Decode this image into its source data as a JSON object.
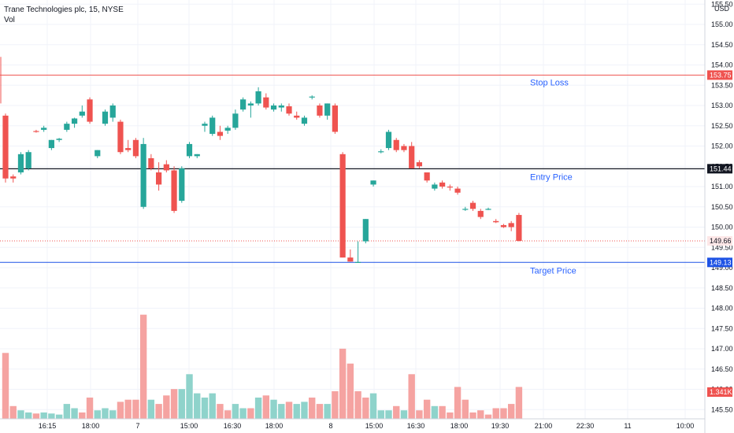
{
  "header": {
    "title": "Trane Technologies plc, 15, NYSE",
    "volume_label": "Vol",
    "currency": "USD"
  },
  "colors": {
    "up": "#26a69a",
    "down": "#ef5350",
    "up_volume": "#8fd3cb",
    "down_volume": "#f5a3a1",
    "stop_loss": "#ef5350",
    "entry": "#131722",
    "target": "#1e53e5",
    "annotation": "#2962ff"
  },
  "chart_data": {
    "type": "candlestick",
    "title": "Trane Technologies plc, 15, NYSE",
    "ylim": [
      145.55,
      155.75
    ],
    "y_ticks": [
      "155.50",
      "155.00",
      "154.50",
      "154.00",
      "153.50",
      "153.00",
      "152.50",
      "152.00",
      "151.50",
      "151.00",
      "150.50",
      "150.00",
      "149.50",
      "149.00",
      "148.50",
      "148.00",
      "147.50",
      "147.00",
      "146.50",
      "146.00",
      "145.50"
    ],
    "x_ticks": [
      "16:15",
      "18:00",
      "7",
      "15:00",
      "16:30",
      "18:00",
      "8",
      "15:00",
      "16:30",
      "18:00",
      "19:30",
      "21:00",
      "22:30",
      "11",
      "10:00"
    ],
    "grid": true,
    "candles": [
      {
        "o": 152.75,
        "h": 152.8,
        "l": 151.1,
        "c": 151.2
      },
      {
        "o": 151.25,
        "h": 151.3,
        "l": 151.1,
        "c": 151.2
      },
      {
        "o": 151.35,
        "h": 151.85,
        "l": 151.3,
        "c": 151.8
      },
      {
        "o": 151.45,
        "h": 151.9,
        "l": 151.4,
        "c": 151.85
      },
      {
        "o": 152.37,
        "h": 152.4,
        "l": 152.33,
        "c": 152.36
      },
      {
        "o": 152.4,
        "h": 152.5,
        "l": 152.35,
        "c": 152.45
      },
      {
        "o": 151.95,
        "h": 152.15,
        "l": 151.9,
        "c": 152.15
      },
      {
        "o": 152.15,
        "h": 152.2,
        "l": 152.1,
        "c": 152.18
      },
      {
        "o": 152.4,
        "h": 152.6,
        "l": 152.35,
        "c": 152.55
      },
      {
        "o": 152.55,
        "h": 152.7,
        "l": 152.45,
        "c": 152.68
      },
      {
        "o": 152.75,
        "h": 153.0,
        "l": 152.7,
        "c": 152.85
      },
      {
        "o": 153.15,
        "h": 153.2,
        "l": 152.55,
        "c": 152.6
      },
      {
        "o": 151.75,
        "h": 151.9,
        "l": 151.7,
        "c": 151.9
      },
      {
        "o": 152.55,
        "h": 152.9,
        "l": 152.5,
        "c": 152.85
      },
      {
        "o": 152.7,
        "h": 153.05,
        "l": 152.6,
        "c": 153.0
      },
      {
        "o": 152.6,
        "h": 152.65,
        "l": 151.8,
        "c": 151.85
      },
      {
        "o": 151.95,
        "h": 152.15,
        "l": 151.85,
        "c": 151.9
      },
      {
        "o": 152.15,
        "h": 152.2,
        "l": 151.7,
        "c": 151.75
      },
      {
        "o": 150.5,
        "h": 152.2,
        "l": 150.45,
        "c": 152.05
      },
      {
        "o": 151.7,
        "h": 151.8,
        "l": 151.4,
        "c": 151.45
      },
      {
        "o": 151.35,
        "h": 151.6,
        "l": 150.9,
        "c": 151.05
      },
      {
        "o": 151.55,
        "h": 151.65,
        "l": 151.35,
        "c": 151.4
      },
      {
        "o": 151.4,
        "h": 151.5,
        "l": 150.35,
        "c": 150.4
      },
      {
        "o": 150.65,
        "h": 151.5,
        "l": 150.6,
        "c": 151.45
      },
      {
        "o": 151.75,
        "h": 152.1,
        "l": 151.7,
        "c": 152.05
      },
      {
        "o": 151.75,
        "h": 151.8,
        "l": 151.7,
        "c": 151.8
      },
      {
        "o": 152.5,
        "h": 152.6,
        "l": 152.35,
        "c": 152.55
      },
      {
        "o": 152.3,
        "h": 152.75,
        "l": 152.25,
        "c": 152.7
      },
      {
        "o": 152.35,
        "h": 152.5,
        "l": 152.15,
        "c": 152.25
      },
      {
        "o": 152.38,
        "h": 152.5,
        "l": 152.3,
        "c": 152.45
      },
      {
        "o": 152.45,
        "h": 152.9,
        "l": 152.4,
        "c": 152.8
      },
      {
        "o": 152.9,
        "h": 153.2,
        "l": 152.85,
        "c": 153.15
      },
      {
        "o": 153.0,
        "h": 153.1,
        "l": 152.7,
        "c": 153.05
      },
      {
        "o": 153.05,
        "h": 153.45,
        "l": 153.0,
        "c": 153.35
      },
      {
        "o": 153.2,
        "h": 153.3,
        "l": 152.9,
        "c": 152.95
      },
      {
        "o": 152.9,
        "h": 153.05,
        "l": 152.85,
        "c": 153.0
      },
      {
        "o": 152.95,
        "h": 153.05,
        "l": 152.85,
        "c": 153.0
      },
      {
        "o": 152.98,
        "h": 153.05,
        "l": 152.75,
        "c": 152.8
      },
      {
        "o": 152.75,
        "h": 152.85,
        "l": 152.65,
        "c": 152.7
      },
      {
        "o": 152.55,
        "h": 152.75,
        "l": 152.5,
        "c": 152.7
      },
      {
        "o": 153.2,
        "h": 153.25,
        "l": 153.15,
        "c": 153.22
      },
      {
        "o": 153.0,
        "h": 153.05,
        "l": 152.7,
        "c": 152.75
      },
      {
        "o": 152.75,
        "h": 153.05,
        "l": 152.65,
        "c": 153.05
      },
      {
        "o": 153.0,
        "h": 153.05,
        "l": 152.3,
        "c": 152.35
      },
      {
        "o": 151.8,
        "h": 151.85,
        "l": 149.25,
        "c": 149.25
      },
      {
        "o": 149.25,
        "h": 149.45,
        "l": 149.15,
        "c": 149.15
      },
      {
        "o": 149.14,
        "h": 149.65,
        "l": 149.13,
        "c": 149.14
      },
      {
        "o": 149.65,
        "h": 150.2,
        "l": 149.6,
        "c": 150.2
      },
      {
        "o": 151.05,
        "h": 151.15,
        "l": 151.0,
        "c": 151.15
      },
      {
        "o": 151.87,
        "h": 151.92,
        "l": 151.82,
        "c": 151.87
      },
      {
        "o": 151.95,
        "h": 152.4,
        "l": 151.9,
        "c": 152.35
      },
      {
        "o": 152.15,
        "h": 152.2,
        "l": 151.85,
        "c": 151.9
      },
      {
        "o": 152.0,
        "h": 152.05,
        "l": 151.85,
        "c": 151.9
      },
      {
        "o": 152.0,
        "h": 152.1,
        "l": 151.45,
        "c": 151.45
      },
      {
        "o": 151.6,
        "h": 151.65,
        "l": 151.45,
        "c": 151.5
      },
      {
        "o": 151.35,
        "h": 151.35,
        "l": 151.1,
        "c": 151.15
      },
      {
        "o": 150.95,
        "h": 151.1,
        "l": 150.9,
        "c": 151.05
      },
      {
        "o": 151.1,
        "h": 151.15,
        "l": 150.95,
        "c": 151.0
      },
      {
        "o": 151.0,
        "h": 151.05,
        "l": 150.9,
        "c": 150.98
      },
      {
        "o": 150.95,
        "h": 151.0,
        "l": 150.8,
        "c": 150.85
      },
      {
        "o": 150.45,
        "h": 150.5,
        "l": 150.4,
        "c": 150.45
      },
      {
        "o": 150.6,
        "h": 150.65,
        "l": 150.4,
        "c": 150.45
      },
      {
        "o": 150.4,
        "h": 150.45,
        "l": 150.2,
        "c": 150.25
      },
      {
        "o": 150.45,
        "h": 150.48,
        "l": 150.42,
        "c": 150.45
      },
      {
        "o": 150.15,
        "h": 150.2,
        "l": 150.1,
        "c": 150.12
      },
      {
        "o": 150.05,
        "h": 150.08,
        "l": 149.98,
        "c": 150.0
      },
      {
        "o": 150.1,
        "h": 150.15,
        "l": 149.9,
        "c": 150.0
      },
      {
        "o": 150.3,
        "h": 150.35,
        "l": 149.65,
        "c": 149.66
      }
    ],
    "volume": [
      {
        "v": 62,
        "up": false
      },
      {
        "v": 12,
        "up": false
      },
      {
        "v": 8,
        "up": true
      },
      {
        "v": 6,
        "up": true
      },
      {
        "v": 5,
        "up": false
      },
      {
        "v": 6,
        "up": true
      },
      {
        "v": 5,
        "up": true
      },
      {
        "v": 4,
        "up": true
      },
      {
        "v": 14,
        "up": true
      },
      {
        "v": 10,
        "up": true
      },
      {
        "v": 6,
        "up": false
      },
      {
        "v": 20,
        "up": false
      },
      {
        "v": 8,
        "up": true
      },
      {
        "v": 10,
        "up": true
      },
      {
        "v": 8,
        "up": true
      },
      {
        "v": 16,
        "up": false
      },
      {
        "v": 18,
        "up": false
      },
      {
        "v": 18,
        "up": false
      },
      {
        "v": 98,
        "up": false
      },
      {
        "v": 18,
        "up": true
      },
      {
        "v": 14,
        "up": false
      },
      {
        "v": 22,
        "up": false
      },
      {
        "v": 28,
        "up": false
      },
      {
        "v": 28,
        "up": true
      },
      {
        "v": 42,
        "up": true
      },
      {
        "v": 24,
        "up": true
      },
      {
        "v": 20,
        "up": true
      },
      {
        "v": 24,
        "up": true
      },
      {
        "v": 14,
        "up": false
      },
      {
        "v": 8,
        "up": false
      },
      {
        "v": 14,
        "up": true
      },
      {
        "v": 10,
        "up": true
      },
      {
        "v": 10,
        "up": false
      },
      {
        "v": 20,
        "up": true
      },
      {
        "v": 22,
        "up": false
      },
      {
        "v": 18,
        "up": true
      },
      {
        "v": 14,
        "up": true
      },
      {
        "v": 16,
        "up": false
      },
      {
        "v": 14,
        "up": true
      },
      {
        "v": 16,
        "up": true
      },
      {
        "v": 20,
        "up": false
      },
      {
        "v": 14,
        "up": false
      },
      {
        "v": 14,
        "up": true
      },
      {
        "v": 26,
        "up": false
      },
      {
        "v": 66,
        "up": false
      },
      {
        "v": 52,
        "up": false
      },
      {
        "v": 26,
        "up": false
      },
      {
        "v": 20,
        "up": false
      },
      {
        "v": 24,
        "up": true
      },
      {
        "v": 8,
        "up": true
      },
      {
        "v": 8,
        "up": true
      },
      {
        "v": 12,
        "up": false
      },
      {
        "v": 8,
        "up": true
      },
      {
        "v": 42,
        "up": false
      },
      {
        "v": 8,
        "up": false
      },
      {
        "v": 18,
        "up": false
      },
      {
        "v": 12,
        "up": true
      },
      {
        "v": 12,
        "up": false
      },
      {
        "v": 6,
        "up": false
      },
      {
        "v": 30,
        "up": false
      },
      {
        "v": 18,
        "up": false
      },
      {
        "v": 6,
        "up": false
      },
      {
        "v": 8,
        "up": false
      },
      {
        "v": 4,
        "up": false
      },
      {
        "v": 10,
        "up": false
      },
      {
        "v": 10,
        "up": false
      },
      {
        "v": 14,
        "up": false
      },
      {
        "v": 30,
        "up": false
      }
    ],
    "levels": [
      {
        "name": "Stop Loss",
        "value": 153.75,
        "label": "153.75"
      },
      {
        "name": "Entry Price",
        "value": 151.44,
        "label": "151.44"
      },
      {
        "name": "Target Price",
        "value": 149.13,
        "label": "149.13"
      }
    ],
    "last_price": {
      "value": 149.66,
      "label": "149.66"
    },
    "volume_label": {
      "value": "1.341K"
    }
  }
}
